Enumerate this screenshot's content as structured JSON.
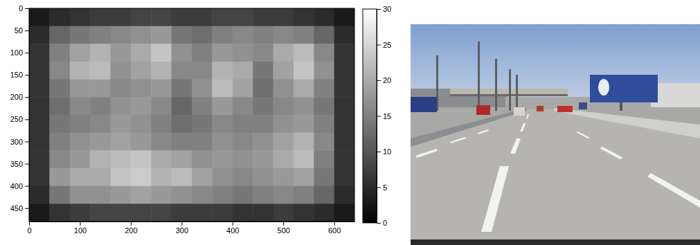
{
  "chart_data": {
    "type": "heatmap",
    "x": [
      20,
      60,
      100,
      140,
      180,
      220,
      260,
      300,
      340,
      380,
      420,
      460,
      500,
      540,
      580,
      620
    ],
    "y": [
      20,
      60,
      100,
      140,
      180,
      220,
      260,
      300,
      340,
      380,
      420,
      460
    ],
    "values": [
      [
        3,
        5,
        6,
        7,
        7,
        8,
        8,
        7,
        7,
        8,
        8,
        7,
        7,
        6,
        5,
        3
      ],
      [
        5,
        12,
        14,
        15,
        16,
        17,
        18,
        14,
        13,
        15,
        16,
        15,
        16,
        15,
        12,
        5
      ],
      [
        6,
        15,
        19,
        21,
        18,
        20,
        23,
        17,
        15,
        18,
        17,
        16,
        20,
        22,
        16,
        6
      ],
      [
        6,
        16,
        21,
        22,
        17,
        19,
        21,
        16,
        16,
        21,
        20,
        14,
        19,
        23,
        17,
        6
      ],
      [
        6,
        14,
        18,
        18,
        16,
        17,
        18,
        14,
        17,
        22,
        19,
        13,
        17,
        20,
        15,
        6
      ],
      [
        6,
        13,
        16,
        15,
        17,
        18,
        16,
        12,
        15,
        18,
        16,
        14,
        16,
        17,
        14,
        6
      ],
      [
        6,
        14,
        15,
        16,
        18,
        17,
        15,
        13,
        14,
        16,
        15,
        15,
        17,
        18,
        15,
        6
      ],
      [
        6,
        15,
        17,
        18,
        19,
        18,
        16,
        15,
        15,
        17,
        16,
        17,
        19,
        21,
        16,
        6
      ],
      [
        6,
        16,
        18,
        21,
        22,
        23,
        20,
        19,
        17,
        18,
        17,
        18,
        20,
        22,
        15,
        6
      ],
      [
        6,
        18,
        20,
        20,
        23,
        24,
        21,
        22,
        19,
        17,
        16,
        17,
        18,
        19,
        14,
        6
      ],
      [
        5,
        14,
        17,
        17,
        18,
        19,
        18,
        17,
        16,
        15,
        14,
        15,
        16,
        15,
        12,
        5
      ],
      [
        3,
        6,
        7,
        8,
        8,
        8,
        8,
        7,
        7,
        7,
        6,
        6,
        7,
        6,
        5,
        3
      ]
    ],
    "xlim": [
      0,
      640
    ],
    "ylim": [
      0,
      480
    ],
    "xticks": [
      0,
      100,
      200,
      300,
      400,
      500,
      600
    ],
    "yticks": [
      0,
      50,
      100,
      150,
      200,
      250,
      300,
      350,
      400,
      450
    ],
    "colorbar_lim": [
      0,
      30
    ],
    "colorbar_ticks": [
      0,
      5,
      10,
      15,
      20,
      25,
      30
    ],
    "color": "gray"
  }
}
